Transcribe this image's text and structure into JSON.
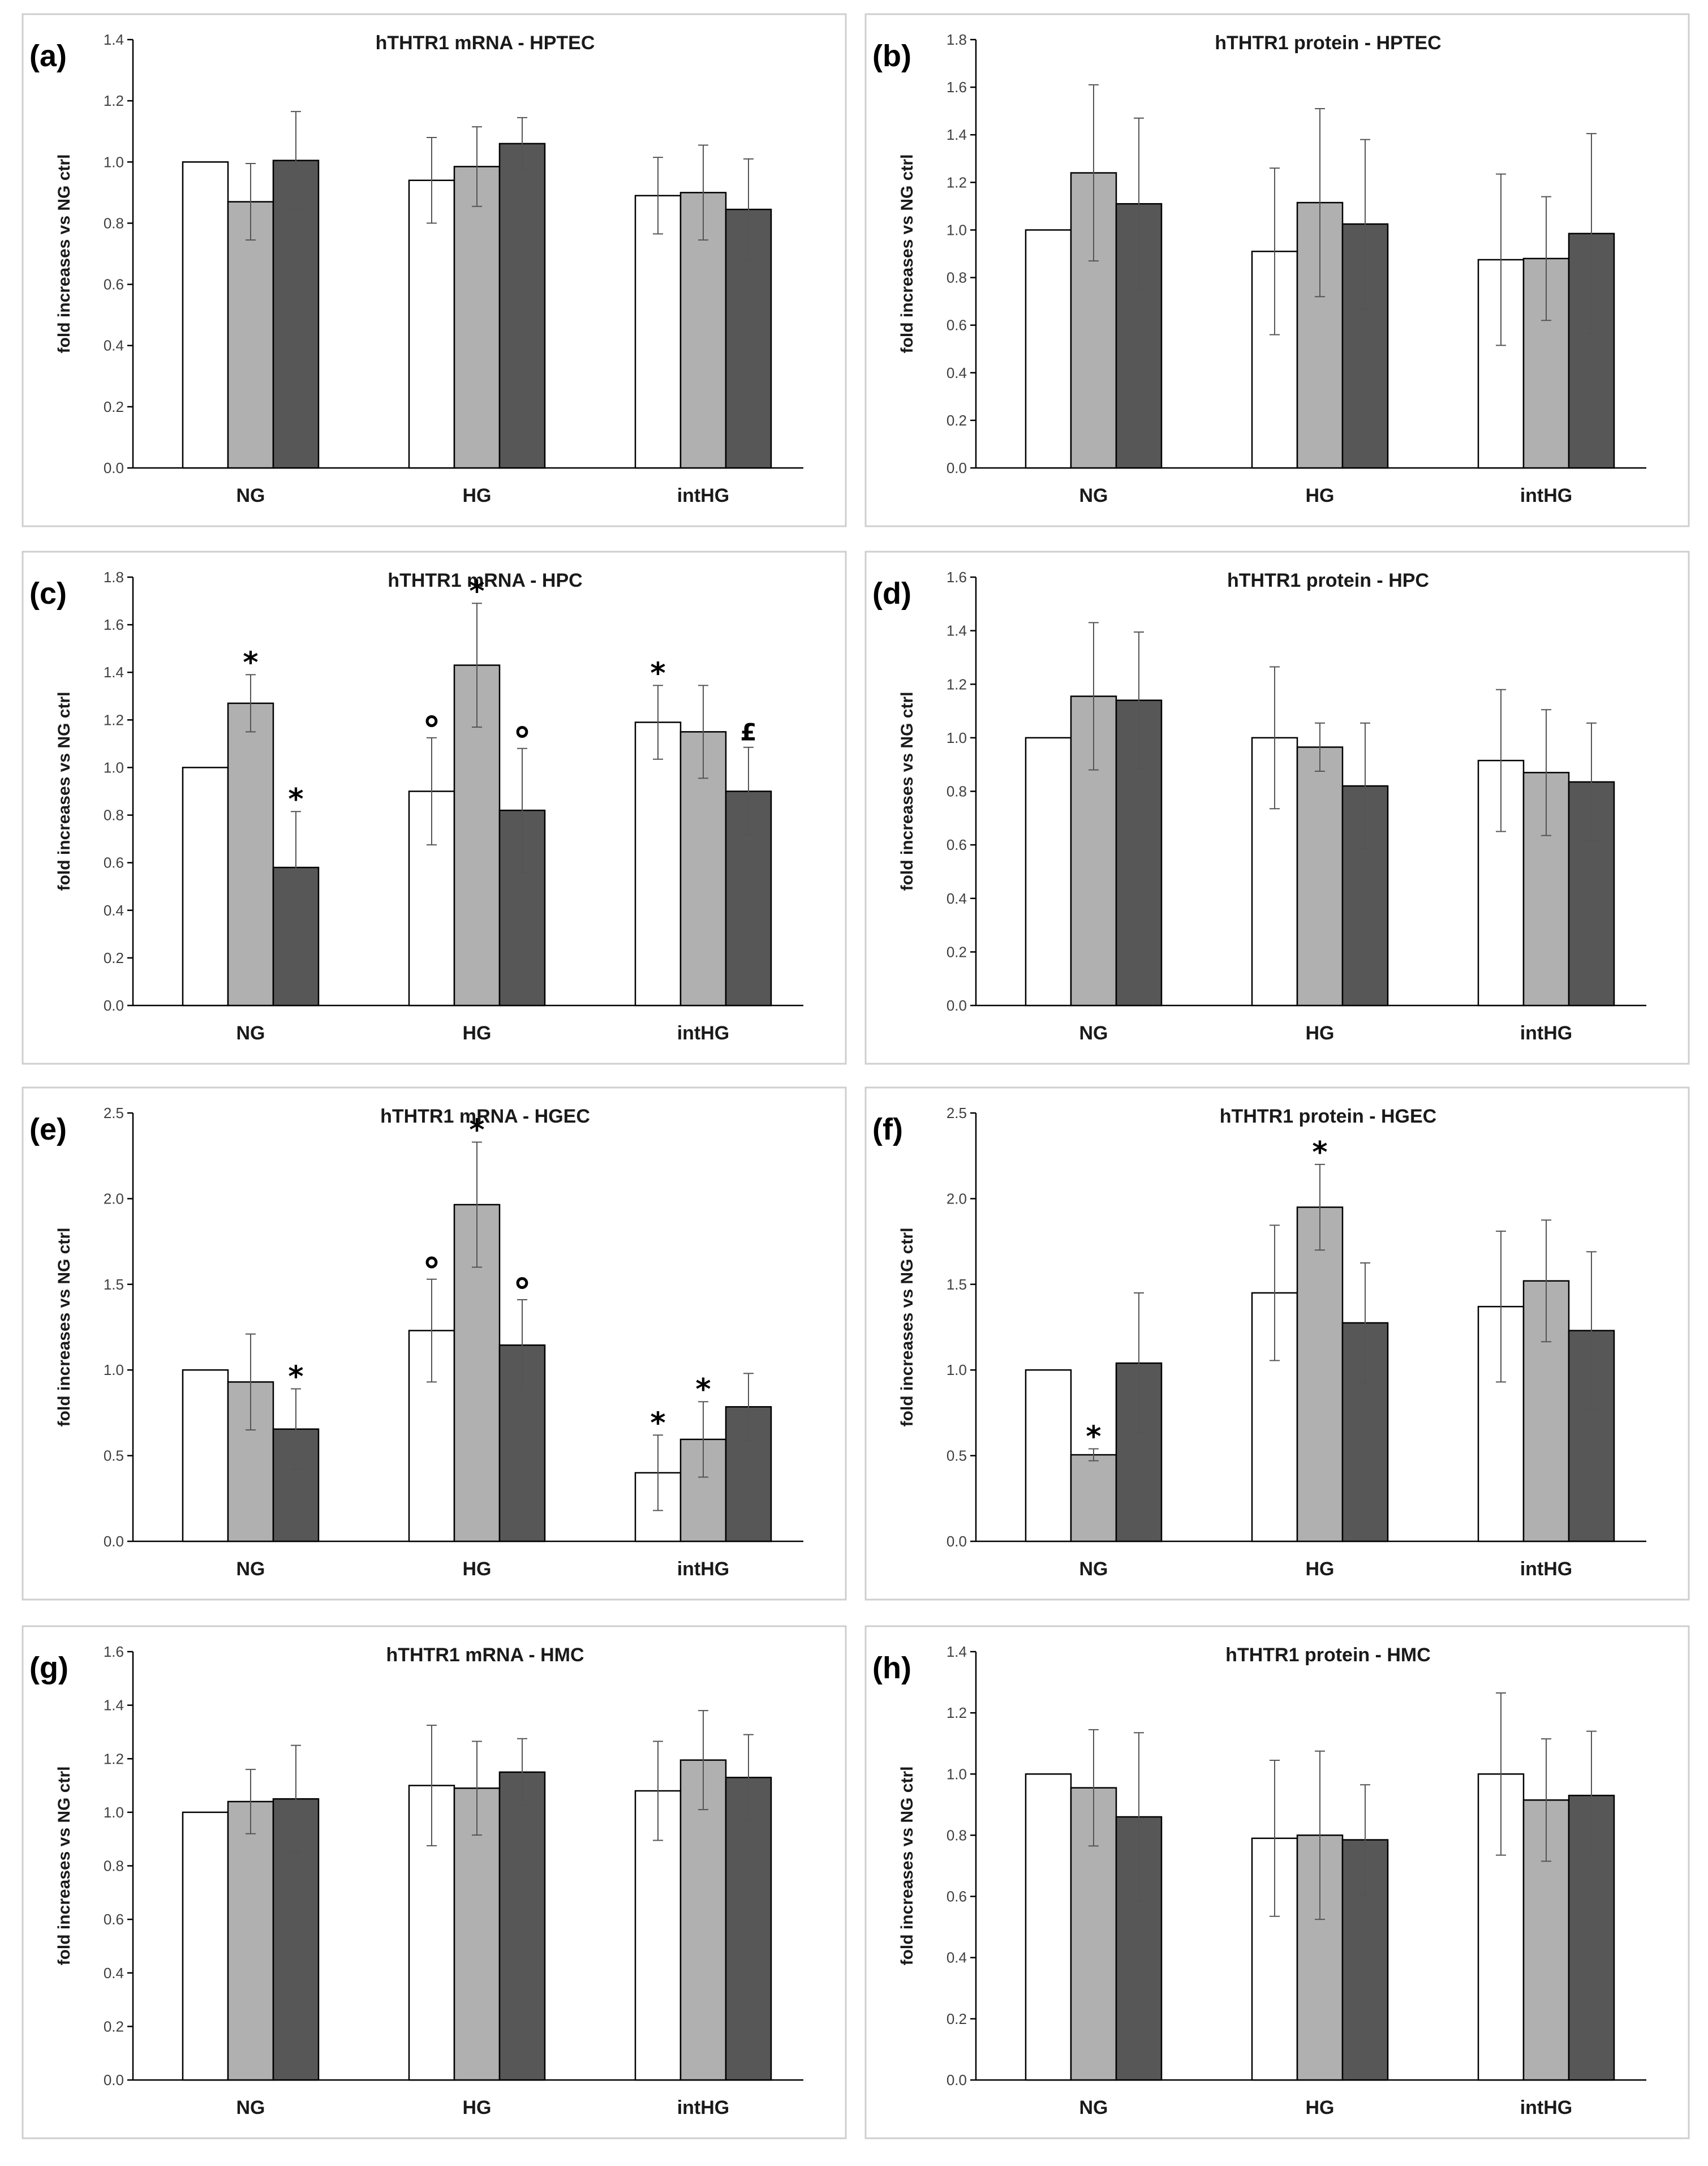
{
  "chart_data": [
    {
      "panel": "(a)",
      "type": "bar",
      "title": "hTHTR1 mRNA - HPTEC",
      "ylabel": "fold increases vs NG ctrl",
      "ylim": [
        0,
        1.4
      ],
      "yticks": [
        "0.0",
        "0.2",
        "0.4",
        "0.6",
        "0.8",
        "1.0",
        "1.2",
        "1.4"
      ],
      "categories": [
        "NG",
        "HG",
        "intHG"
      ],
      "series": [
        {
          "color": "#ffffff",
          "values": [
            1.0,
            0.94,
            0.89
          ],
          "errors": [
            0,
            0.14,
            0.125
          ],
          "marks": [
            "",
            "",
            ""
          ]
        },
        {
          "color": "#b0b0b0",
          "values": [
            0.87,
            0.985,
            0.9
          ],
          "errors": [
            0.125,
            0.13,
            0.155
          ],
          "marks": [
            "",
            "",
            ""
          ]
        },
        {
          "color": "#575757",
          "values": [
            1.005,
            1.06,
            0.845
          ],
          "errors": [
            0.16,
            0.085,
            0.165
          ],
          "marks": [
            "",
            "",
            ""
          ]
        }
      ]
    },
    {
      "panel": "(b)",
      "type": "bar",
      "title": "hTHTR1 protein - HPTEC",
      "ylabel": "fold increases vs NG ctrl",
      "ylim": [
        0,
        1.8
      ],
      "yticks": [
        "0.0",
        "0.2",
        "0.4",
        "0.6",
        "0.8",
        "1.0",
        "1.2",
        "1.4",
        "1.6",
        "1.8"
      ],
      "categories": [
        "NG",
        "HG",
        "intHG"
      ],
      "series": [
        {
          "color": "#ffffff",
          "values": [
            1.0,
            0.91,
            0.875
          ],
          "errors": [
            0,
            0.35,
            0.36
          ],
          "marks": [
            "",
            "",
            ""
          ]
        },
        {
          "color": "#b0b0b0",
          "values": [
            1.24,
            1.115,
            0.88
          ],
          "errors": [
            0.37,
            0.395,
            0.26
          ],
          "marks": [
            "",
            "",
            ""
          ]
        },
        {
          "color": "#575757",
          "values": [
            1.11,
            1.025,
            0.985
          ],
          "errors": [
            0.36,
            0.355,
            0.42
          ],
          "marks": [
            "",
            "",
            ""
          ]
        }
      ]
    },
    {
      "panel": "(c)",
      "type": "bar",
      "title": "hTHTR1 mRNA - HPC",
      "ylabel": "fold increases vs NG ctrl",
      "ylim": [
        0,
        1.8
      ],
      "yticks": [
        "0.0",
        "0.2",
        "0.4",
        "0.6",
        "0.8",
        "1.0",
        "1.2",
        "1.4",
        "1.6",
        "1.8"
      ],
      "categories": [
        "NG",
        "HG",
        "intHG"
      ],
      "series": [
        {
          "color": "#ffffff",
          "values": [
            1.0,
            0.9,
            1.19
          ],
          "errors": [
            0,
            0.225,
            0.155
          ],
          "marks": [
            "",
            "°",
            "*"
          ]
        },
        {
          "color": "#b0b0b0",
          "values": [
            1.27,
            1.43,
            1.15
          ],
          "errors": [
            0.12,
            0.26,
            0.195
          ],
          "marks": [
            "*",
            "*",
            ""
          ]
        },
        {
          "color": "#575757",
          "values": [
            0.58,
            0.82,
            0.9
          ],
          "errors": [
            0.235,
            0.26,
            0.185
          ],
          "marks": [
            "*",
            "°",
            "£"
          ]
        }
      ]
    },
    {
      "panel": "(d)",
      "type": "bar",
      "title": "hTHTR1 protein - HPC",
      "ylabel": "fold increases vs NG ctrl",
      "ylim": [
        0,
        1.6
      ],
      "yticks": [
        "0.0",
        "0.2",
        "0.4",
        "0.6",
        "0.8",
        "1.0",
        "1.2",
        "1.4",
        "1.6"
      ],
      "categories": [
        "NG",
        "HG",
        "intHG"
      ],
      "series": [
        {
          "color": "#ffffff",
          "values": [
            1.0,
            1.0,
            0.915
          ],
          "errors": [
            0,
            0.265,
            0.265
          ],
          "marks": [
            "",
            "",
            ""
          ]
        },
        {
          "color": "#b0b0b0",
          "values": [
            1.155,
            0.965,
            0.87
          ],
          "errors": [
            0.275,
            0.09,
            0.235
          ],
          "marks": [
            "",
            "",
            ""
          ]
        },
        {
          "color": "#575757",
          "values": [
            1.14,
            0.82,
            0.835
          ],
          "errors": [
            0.255,
            0.235,
            0.22
          ],
          "marks": [
            "",
            "",
            ""
          ]
        }
      ]
    },
    {
      "panel": "(e)",
      "type": "bar",
      "title": "hTHTR1 mRNA - HGEC",
      "ylabel": "fold increases vs NG ctrl",
      "ylim": [
        0,
        2.5
      ],
      "yticks": [
        "0.0",
        "0.5",
        "1.0",
        "1.5",
        "2.0",
        "2.5"
      ],
      "categories": [
        "NG",
        "HG",
        "intHG"
      ],
      "series": [
        {
          "color": "#ffffff",
          "values": [
            1.0,
            1.23,
            0.4
          ],
          "errors": [
            0,
            0.3,
            0.22
          ],
          "marks": [
            "",
            "°",
            "*"
          ]
        },
        {
          "color": "#b0b0b0",
          "values": [
            0.93,
            1.965,
            0.595
          ],
          "errors": [
            0.28,
            0.365,
            0.22
          ],
          "marks": [
            "",
            "*",
            "*"
          ]
        },
        {
          "color": "#575757",
          "values": [
            0.655,
            1.145,
            0.785
          ],
          "errors": [
            0.235,
            0.265,
            0.195
          ],
          "marks": [
            "*",
            "°",
            ""
          ]
        }
      ]
    },
    {
      "panel": "(f)",
      "type": "bar",
      "title": "hTHTR1 protein - HGEC",
      "ylabel": "fold increases vs NG ctrl",
      "ylim": [
        0,
        2.5
      ],
      "yticks": [
        "0.0",
        "0.5",
        "1.0",
        "1.5",
        "2.0",
        "2.5"
      ],
      "categories": [
        "NG",
        "HG",
        "intHG"
      ],
      "series": [
        {
          "color": "#ffffff",
          "values": [
            1.0,
            1.45,
            1.37
          ],
          "errors": [
            0,
            0.395,
            0.44
          ],
          "marks": [
            "",
            "",
            ""
          ]
        },
        {
          "color": "#b0b0b0",
          "values": [
            0.505,
            1.95,
            1.52
          ],
          "errors": [
            0.035,
            0.25,
            0.355
          ],
          "marks": [
            "*",
            "*",
            ""
          ]
        },
        {
          "color": "#575757",
          "values": [
            1.04,
            1.275,
            1.23
          ],
          "errors": [
            0.41,
            0.35,
            0.46
          ],
          "marks": [
            "",
            "",
            ""
          ]
        }
      ]
    },
    {
      "panel": "(g)",
      "type": "bar",
      "title": "hTHTR1 mRNA - HMC",
      "ylabel": "fold increases vs NG ctrl",
      "ylim": [
        0,
        1.6
      ],
      "yticks": [
        "0.0",
        "0.2",
        "0.4",
        "0.6",
        "0.8",
        "1.0",
        "1.2",
        "1.4",
        "1.6"
      ],
      "categories": [
        "NG",
        "HG",
        "intHG"
      ],
      "series": [
        {
          "color": "#ffffff",
          "values": [
            1.0,
            1.1,
            1.08
          ],
          "errors": [
            0,
            0.225,
            0.185
          ],
          "marks": [
            "",
            "",
            ""
          ]
        },
        {
          "color": "#b0b0b0",
          "values": [
            1.04,
            1.09,
            1.195
          ],
          "errors": [
            0.12,
            0.175,
            0.185
          ],
          "marks": [
            "",
            "",
            ""
          ]
        },
        {
          "color": "#575757",
          "values": [
            1.05,
            1.15,
            1.13
          ],
          "errors": [
            0.2,
            0.125,
            0.16
          ],
          "marks": [
            "",
            "",
            ""
          ]
        }
      ]
    },
    {
      "panel": "(h)",
      "type": "bar",
      "title": "hTHTR1 protein - HMC",
      "ylabel": "fold increases vs NG ctrl",
      "ylim": [
        0,
        1.4
      ],
      "yticks": [
        "0.0",
        "0.2",
        "0.4",
        "0.6",
        "0.8",
        "1.0",
        "1.2",
        "1.4"
      ],
      "categories": [
        "NG",
        "HG",
        "intHG"
      ],
      "series": [
        {
          "color": "#ffffff",
          "values": [
            1.0,
            0.79,
            1.0
          ],
          "errors": [
            0,
            0.255,
            0.265
          ],
          "marks": [
            "",
            "",
            ""
          ]
        },
        {
          "color": "#b0b0b0",
          "values": [
            0.955,
            0.8,
            0.915
          ],
          "errors": [
            0.19,
            0.275,
            0.2
          ],
          "marks": [
            "",
            "",
            ""
          ]
        },
        {
          "color": "#575757",
          "values": [
            0.86,
            0.785,
            0.93
          ],
          "errors": [
            0.275,
            0.18,
            0.21
          ],
          "marks": [
            "",
            "",
            ""
          ]
        }
      ]
    }
  ]
}
